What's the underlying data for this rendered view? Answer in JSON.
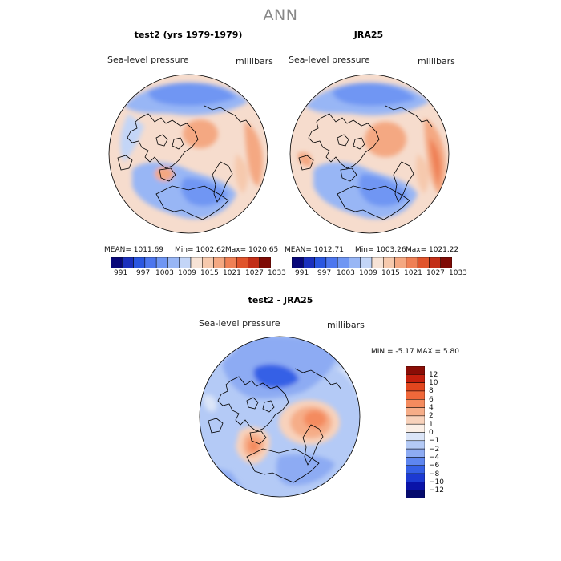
{
  "title": "ANN",
  "palette_abs": [
    "#08077a",
    "#1a2fbd",
    "#2a56e0",
    "#4c76ee",
    "#6f96f3",
    "#98b6f5",
    "#c3d5f7",
    "#f7e3d6",
    "#f6c9ad",
    "#f4a882",
    "#ef8055",
    "#e0542c",
    "#c22e17",
    "#7f0b05"
  ],
  "abs_ticks": [
    "991",
    "997",
    "1003",
    "1009",
    "1015",
    "1021",
    "1027",
    "1033"
  ],
  "panels": [
    {
      "title": "test2 (yrs 1979-1979)",
      "label_left": "Sea-level pressure",
      "label_right": "millibars",
      "mean_text": "MEAN= 1011.69",
      "min_text": "Min= 1002.62",
      "max_text": "Max= 1020.65"
    },
    {
      "title": "JRA25",
      "label_left": "Sea-level pressure",
      "label_right": "millibars",
      "mean_text": "MEAN= 1012.71",
      "min_text": "Min= 1003.26",
      "max_text": "Max= 1021.22"
    }
  ],
  "diff": {
    "title": "test2 - JRA25",
    "label_left": "Sea-level pressure",
    "label_right": "millibars",
    "stats_text": "MIN =   -5.17 MAX =    5.80",
    "levels": [
      "12",
      "10",
      "8",
      "6",
      "4",
      "2",
      "1",
      "0",
      "−1",
      "−2",
      "−4",
      "−6",
      "−8",
      "−10",
      "−12"
    ],
    "palette": [
      "#8a0d06",
      "#c41f0d",
      "#e2461e",
      "#f0683a",
      "#f48b5e",
      "#f6ad88",
      "#f8d2bb",
      "#fbefe6",
      "#dbe5f8",
      "#b4caf6",
      "#8dabf3",
      "#5e86f0",
      "#3560e6",
      "#1c3ad2",
      "#0a13a8",
      "#050a6d"
    ]
  }
}
